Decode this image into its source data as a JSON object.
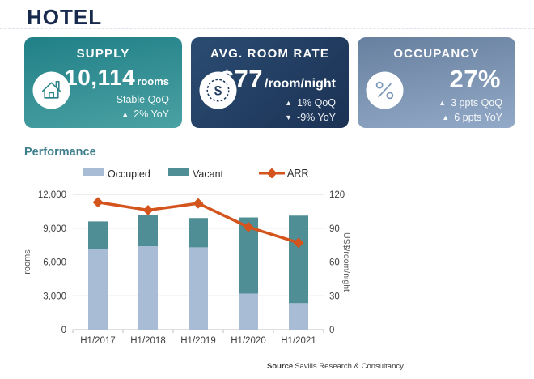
{
  "page": {
    "title": "HOTEL"
  },
  "cards": [
    {
      "id": "supply",
      "title": "SUPPLY",
      "icon": "house-icon",
      "value": "10,114",
      "value_suffix": "rooms",
      "sub1_arrow": "",
      "sub1": "Stable QoQ",
      "sub2_arrow": "▲",
      "sub2": "2% YoY"
    },
    {
      "id": "avg-room-rate",
      "title": "AVG. ROOM RATE",
      "icon": "coin-dollar-icon",
      "value": "$77",
      "value_suffix": "/room/night",
      "sub1_arrow": "▲",
      "sub1": "1% QoQ",
      "sub2_arrow": "▼",
      "sub2": "-9% YoY"
    },
    {
      "id": "occupancy",
      "title": "OCCUPANCY",
      "icon": "percent-icon",
      "value": "27%",
      "value_suffix": "",
      "sub1_arrow": "▲",
      "sub1": "3 ppts QoQ",
      "sub2_arrow": "▲",
      "sub2": "6 ppts YoY"
    }
  ],
  "performance": {
    "heading": "Performance"
  },
  "chart_data": {
    "type": "bar",
    "subtype": "stacked-bars-with-line",
    "categories": [
      "H1/2017",
      "H1/2018",
      "H1/2019",
      "H1/2020",
      "H1/2021"
    ],
    "series": [
      {
        "name": "Occupied",
        "kind": "bar",
        "stack": "rooms",
        "color": "#a9bcd6",
        "values": [
          7150,
          7400,
          7300,
          3200,
          2350
        ]
      },
      {
        "name": "Vacant",
        "kind": "bar",
        "stack": "rooms",
        "color": "#4e8e94",
        "values": [
          2450,
          2750,
          2600,
          6750,
          7764
        ]
      },
      {
        "name": "ARR",
        "kind": "line",
        "axis": "right",
        "color": "#d4541d",
        "values": [
          113,
          106,
          112,
          91,
          77
        ]
      }
    ],
    "left_axis": {
      "label": "rooms",
      "ticks": [
        0,
        3000,
        6000,
        9000,
        12000
      ],
      "max": 12000
    },
    "right_axis": {
      "label": "US$/room/night",
      "ticks": [
        0,
        30,
        60,
        90,
        120
      ],
      "max": 120
    },
    "legend_position": "top",
    "grid": true
  },
  "footer": {
    "source_label": "Source",
    "source_text": "Savills Research & Consultancy"
  },
  "colors": {
    "title_navy": "#17294d",
    "supply_card_gradient": [
      "#208087",
      "#4ba1a3"
    ],
    "rate_card_gradient": [
      "#2b4c72",
      "#1b3254"
    ],
    "occupancy_card_gradient": [
      "#68809f",
      "#92aac7"
    ],
    "occupied_bar": "#a9bcd6",
    "vacant_bar": "#4e8e94",
    "arr_line": "#d4541d",
    "performance_heading": "#3f7f8d"
  }
}
